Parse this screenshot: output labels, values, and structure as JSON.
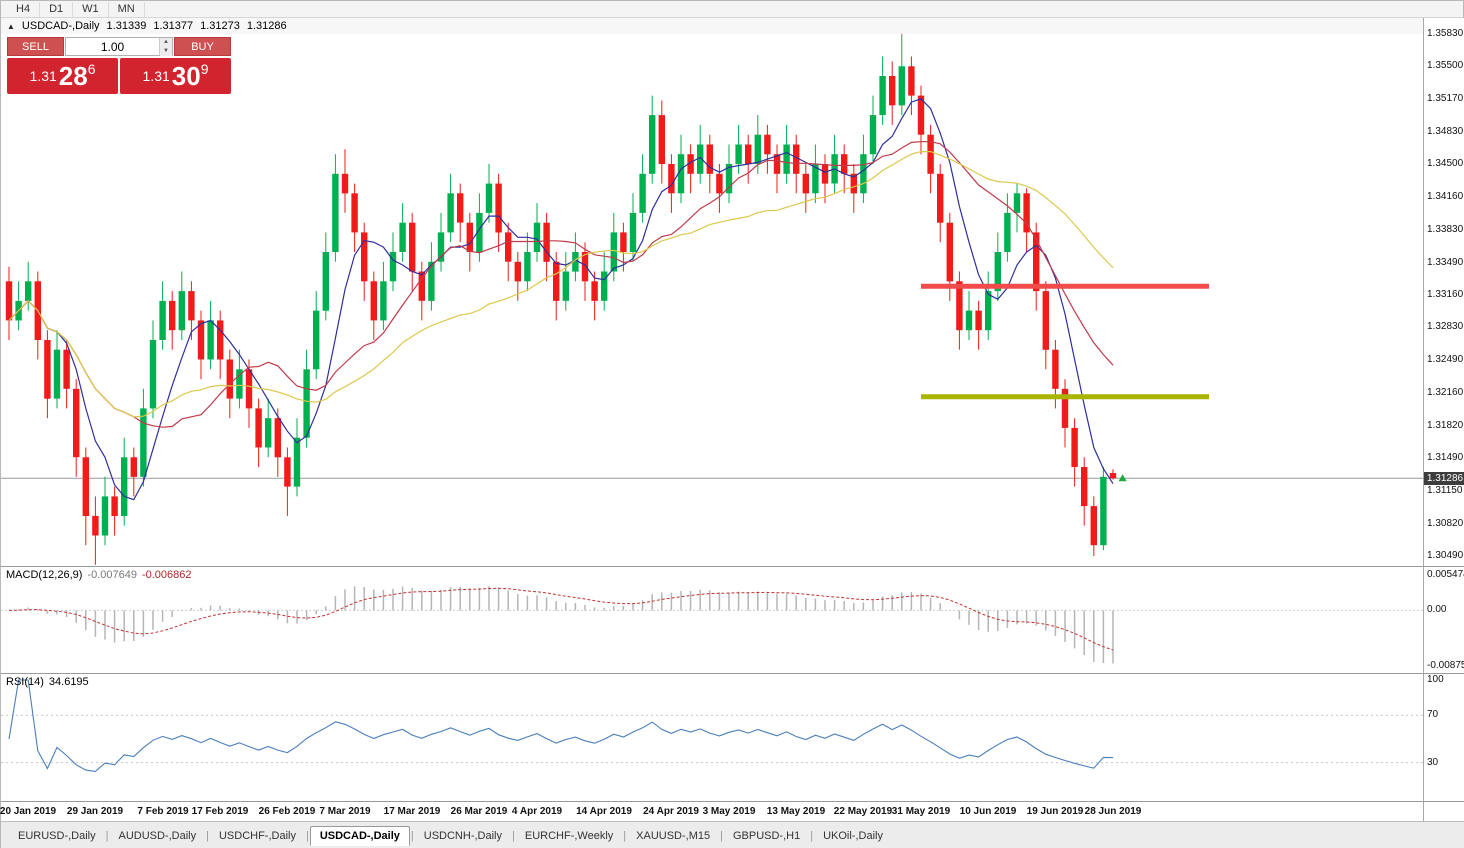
{
  "toolbar": {
    "periods": [
      "H4",
      "D1",
      "W1",
      "MN"
    ]
  },
  "icons": {
    "title_marker": "▲",
    "shift_marker": "▲",
    "spinner_up": "▲",
    "spinner_down": "▼"
  },
  "colors": {
    "trade_red": "#d2242e",
    "trade_button_red": "#cf5050",
    "candle_up": "#00b050",
    "candle_down": "#f01b1b",
    "ma_fast": "#2e2e9e",
    "ma_mid": "#c03a4a",
    "ma_slow": "#dcc84a",
    "macd_histogram": "#b5b5b5",
    "macd_signal": "#c23232",
    "rsi_line": "#4a7ebb",
    "resistance": "#f24b4b",
    "support": "#a8b400"
  },
  "chart_header": {
    "symbol": "USDCAD-,Daily",
    "open": "1.31339",
    "high": "1.31377",
    "low": "1.31273",
    "close": "1.31286"
  },
  "trade_panel": {
    "sell_label": "SELL",
    "buy_label": "BUY",
    "volume": "1.00",
    "sell_price": {
      "prefix": "1.31",
      "pips": "28",
      "fraction": "6"
    },
    "buy_price": {
      "prefix": "1.31",
      "pips": "30",
      "fraction": "9"
    }
  },
  "price_axis": {
    "ticks": [
      "1.35830",
      "1.35500",
      "1.35170",
      "1.34830",
      "1.34500",
      "1.34160",
      "1.33830",
      "1.33490",
      "1.33160",
      "1.32830",
      "1.32490",
      "1.32160",
      "1.31820",
      "1.31490",
      "1.31150",
      "1.30820",
      "1.30490"
    ],
    "current": "1.31286"
  },
  "chart_data": {
    "type": "candlestick",
    "symbol": "USDCAD-",
    "timeframe": "Daily",
    "y_range": [
      1.3049,
      1.3583
    ],
    "current_price": 1.31286,
    "candles": [
      [
        1.333,
        1.3345,
        1.327,
        1.329
      ],
      [
        1.329,
        1.333,
        1.328,
        1.331
      ],
      [
        1.331,
        1.335,
        1.33,
        1.333
      ],
      [
        1.333,
        1.334,
        1.325,
        1.327
      ],
      [
        1.327,
        1.328,
        1.319,
        1.321
      ],
      [
        1.321,
        1.328,
        1.32,
        1.326
      ],
      [
        1.326,
        1.327,
        1.32,
        1.322
      ],
      [
        1.322,
        1.323,
        1.313,
        1.315
      ],
      [
        1.315,
        1.316,
        1.306,
        1.309
      ],
      [
        1.309,
        1.311,
        1.304,
        1.307
      ],
      [
        1.307,
        1.313,
        1.306,
        1.311
      ],
      [
        1.311,
        1.312,
        1.307,
        1.309
      ],
      [
        1.309,
        1.317,
        1.308,
        1.315
      ],
      [
        1.315,
        1.316,
        1.311,
        1.313
      ],
      [
        1.313,
        1.322,
        1.312,
        1.32
      ],
      [
        1.32,
        1.329,
        1.319,
        1.327
      ],
      [
        1.327,
        1.333,
        1.326,
        1.331
      ],
      [
        1.331,
        1.332,
        1.326,
        1.328
      ],
      [
        1.328,
        1.334,
        1.327,
        1.332
      ],
      [
        1.332,
        1.333,
        1.327,
        1.329
      ],
      [
        1.329,
        1.33,
        1.323,
        1.325
      ],
      [
        1.325,
        1.331,
        1.324,
        1.329
      ],
      [
        1.329,
        1.33,
        1.323,
        1.325
      ],
      [
        1.325,
        1.326,
        1.319,
        1.321
      ],
      [
        1.321,
        1.326,
        1.32,
        1.324
      ],
      [
        1.324,
        1.325,
        1.318,
        1.32
      ],
      [
        1.32,
        1.321,
        1.314,
        1.316
      ],
      [
        1.316,
        1.321,
        1.315,
        1.319
      ],
      [
        1.319,
        1.32,
        1.313,
        1.315
      ],
      [
        1.315,
        1.316,
        1.309,
        1.312
      ],
      [
        1.312,
        1.319,
        1.311,
        1.317
      ],
      [
        1.317,
        1.326,
        1.316,
        1.324
      ],
      [
        1.324,
        1.332,
        1.323,
        1.33
      ],
      [
        1.33,
        1.338,
        1.329,
        1.336
      ],
      [
        1.336,
        1.346,
        1.335,
        1.344
      ],
      [
        1.344,
        1.3465,
        1.34,
        1.342
      ],
      [
        1.342,
        1.343,
        1.336,
        1.338
      ],
      [
        1.338,
        1.339,
        1.331,
        1.333
      ],
      [
        1.333,
        1.334,
        1.327,
        1.329
      ],
      [
        1.329,
        1.335,
        1.328,
        1.333
      ],
      [
        1.333,
        1.338,
        1.332,
        1.336
      ],
      [
        1.336,
        1.341,
        1.335,
        1.339
      ],
      [
        1.339,
        1.34,
        1.332,
        1.334
      ],
      [
        1.334,
        1.335,
        1.329,
        1.331
      ],
      [
        1.331,
        1.337,
        1.33,
        1.335
      ],
      [
        1.335,
        1.34,
        1.334,
        1.338
      ],
      [
        1.338,
        1.344,
        1.337,
        1.342
      ],
      [
        1.342,
        1.343,
        1.337,
        1.339
      ],
      [
        1.339,
        1.34,
        1.334,
        1.336
      ],
      [
        1.336,
        1.342,
        1.335,
        1.34
      ],
      [
        1.34,
        1.345,
        1.339,
        1.343
      ],
      [
        1.343,
        1.344,
        1.336,
        1.338
      ],
      [
        1.338,
        1.339,
        1.333,
        1.335
      ],
      [
        1.335,
        1.336,
        1.331,
        1.333
      ],
      [
        1.333,
        1.338,
        1.332,
        1.336
      ],
      [
        1.336,
        1.341,
        1.335,
        1.339
      ],
      [
        1.339,
        1.34,
        1.333,
        1.335
      ],
      [
        1.335,
        1.336,
        1.329,
        1.331
      ],
      [
        1.331,
        1.336,
        1.33,
        1.334
      ],
      [
        1.334,
        1.338,
        1.333,
        1.336
      ],
      [
        1.336,
        1.337,
        1.331,
        1.333
      ],
      [
        1.333,
        1.334,
        1.329,
        1.331
      ],
      [
        1.331,
        1.336,
        1.33,
        1.334
      ],
      [
        1.334,
        1.34,
        1.333,
        1.338
      ],
      [
        1.338,
        1.339,
        1.334,
        1.336
      ],
      [
        1.336,
        1.342,
        1.335,
        1.34
      ],
      [
        1.34,
        1.346,
        1.339,
        1.344
      ],
      [
        1.344,
        1.352,
        1.343,
        1.35
      ],
      [
        1.35,
        1.3515,
        1.343,
        1.345
      ],
      [
        1.345,
        1.346,
        1.34,
        1.342
      ],
      [
        1.342,
        1.348,
        1.341,
        1.346
      ],
      [
        1.346,
        1.347,
        1.342,
        1.344
      ],
      [
        1.344,
        1.349,
        1.343,
        1.347
      ],
      [
        1.347,
        1.348,
        1.342,
        1.344
      ],
      [
        1.344,
        1.345,
        1.34,
        1.342
      ],
      [
        1.342,
        1.347,
        1.341,
        1.345
      ],
      [
        1.345,
        1.349,
        1.344,
        1.347
      ],
      [
        1.347,
        1.348,
        1.343,
        1.345
      ],
      [
        1.345,
        1.35,
        1.344,
        1.348
      ],
      [
        1.348,
        1.349,
        1.344,
        1.346
      ],
      [
        1.346,
        1.347,
        1.342,
        1.344
      ],
      [
        1.344,
        1.349,
        1.343,
        1.347
      ],
      [
        1.347,
        1.348,
        1.342,
        1.344
      ],
      [
        1.344,
        1.345,
        1.34,
        1.342
      ],
      [
        1.342,
        1.347,
        1.341,
        1.345
      ],
      [
        1.345,
        1.346,
        1.341,
        1.343
      ],
      [
        1.343,
        1.348,
        1.342,
        1.346
      ],
      [
        1.346,
        1.347,
        1.342,
        1.344
      ],
      [
        1.344,
        1.345,
        1.34,
        1.342
      ],
      [
        1.342,
        1.348,
        1.341,
        1.346
      ],
      [
        1.346,
        1.352,
        1.345,
        1.35
      ],
      [
        1.35,
        1.356,
        1.349,
        1.354
      ],
      [
        1.354,
        1.3555,
        1.349,
        1.351
      ],
      [
        1.351,
        1.3583,
        1.35,
        1.355
      ],
      [
        1.355,
        1.356,
        1.35,
        1.352
      ],
      [
        1.352,
        1.353,
        1.346,
        1.348
      ],
      [
        1.348,
        1.349,
        1.342,
        1.344
      ],
      [
        1.344,
        1.345,
        1.337,
        1.339
      ],
      [
        1.339,
        1.34,
        1.331,
        1.333
      ],
      [
        1.333,
        1.334,
        1.326,
        1.328
      ],
      [
        1.328,
        1.332,
        1.327,
        1.33
      ],
      [
        1.33,
        1.331,
        1.326,
        1.328
      ],
      [
        1.328,
        1.334,
        1.327,
        1.332
      ],
      [
        1.332,
        1.338,
        1.331,
        1.336
      ],
      [
        1.336,
        1.342,
        1.335,
        1.34
      ],
      [
        1.34,
        1.343,
        1.338,
        1.342
      ],
      [
        1.342,
        1.3425,
        1.336,
        1.338
      ],
      [
        1.338,
        1.339,
        1.33,
        1.332
      ],
      [
        1.332,
        1.333,
        1.324,
        1.326
      ],
      [
        1.326,
        1.327,
        1.32,
        1.322
      ],
      [
        1.322,
        1.323,
        1.316,
        1.318
      ],
      [
        1.318,
        1.319,
        1.312,
        1.314
      ],
      [
        1.314,
        1.315,
        1.308,
        1.31
      ],
      [
        1.31,
        1.311,
        1.3049,
        1.306
      ],
      [
        1.306,
        1.314,
        1.3055,
        1.313
      ],
      [
        1.31339,
        1.31377,
        1.31273,
        1.31286
      ]
    ],
    "date_labels": [
      {
        "i": 2,
        "label": "20 Jan 2019"
      },
      {
        "i": 9,
        "label": "29 Jan 2019"
      },
      {
        "i": 16,
        "label": "7 Feb 2019"
      },
      {
        "i": 22,
        "label": "17 Feb 2019"
      },
      {
        "i": 29,
        "label": "26 Feb 2019"
      },
      {
        "i": 35,
        "label": "7 Mar 2019"
      },
      {
        "i": 42,
        "label": "17 Mar 2019"
      },
      {
        "i": 49,
        "label": "26 Mar 2019"
      },
      {
        "i": 55,
        "label": "4 Apr 2019"
      },
      {
        "i": 62,
        "label": "14 Apr 2019"
      },
      {
        "i": 69,
        "label": "24 Apr 2019"
      },
      {
        "i": 75,
        "label": "3 May 2019"
      },
      {
        "i": 82,
        "label": "13 May 2019"
      },
      {
        "i": 89,
        "label": "22 May 2019"
      },
      {
        "i": 95,
        "label": "31 May 2019"
      },
      {
        "i": 102,
        "label": "10 Jun 2019"
      },
      {
        "i": 109,
        "label": "19 Jun 2019"
      },
      {
        "i": 115,
        "label": "28 Jun 2019"
      }
    ],
    "ma_lines": [
      {
        "name": "ma-fast",
        "period": 6,
        "color": "#2e2e9e"
      },
      {
        "name": "ma-mid",
        "period": 14,
        "color": "#c03a4a"
      },
      {
        "name": "ma-slow",
        "period": 30,
        "color": "#dcc84a"
      }
    ],
    "hlines": [
      {
        "name": "resistance-line",
        "price": 1.3325,
        "from_index": 95,
        "to_index": 125,
        "color": "#f24b4b",
        "width": 5
      },
      {
        "name": "support-line",
        "price": 1.3212,
        "from_index": 95,
        "to_index": 125,
        "color": "#a8b400",
        "width": 5
      }
    ],
    "markers": [
      {
        "index": 116,
        "price": 1.31286,
        "color": "#1fa83c"
      }
    ]
  },
  "macd": {
    "name": "MACD(12,26,9)",
    "value_main": "-0.007649",
    "value_signal": "-0.006862",
    "params": [
      12,
      26,
      9
    ],
    "axis": [
      "0.005474",
      "0.00",
      "-0.008752"
    ],
    "range": [
      -0.008752,
      0.005474
    ]
  },
  "rsi": {
    "name": "RSI(14)",
    "value": "34.6195",
    "period": 14,
    "axis": [
      "100",
      "70",
      "30"
    ],
    "levels": [
      70,
      30
    ]
  },
  "tabs": {
    "separator": "|",
    "items": [
      {
        "label": "EURUSD-,Daily",
        "active": false
      },
      {
        "label": "AUDUSD-,Daily",
        "active": false
      },
      {
        "label": "USDCHF-,Daily",
        "active": false
      },
      {
        "label": "USDCAD-,Daily",
        "active": true
      },
      {
        "label": "USDCNH-,Daily",
        "active": false
      },
      {
        "label": "EURCHF-,Weekly",
        "active": false
      },
      {
        "label": "XAUUSD-,M15",
        "active": false
      },
      {
        "label": "GBPUSD-,H1",
        "active": false
      },
      {
        "label": "UKOil-,Daily",
        "active": false
      }
    ]
  }
}
